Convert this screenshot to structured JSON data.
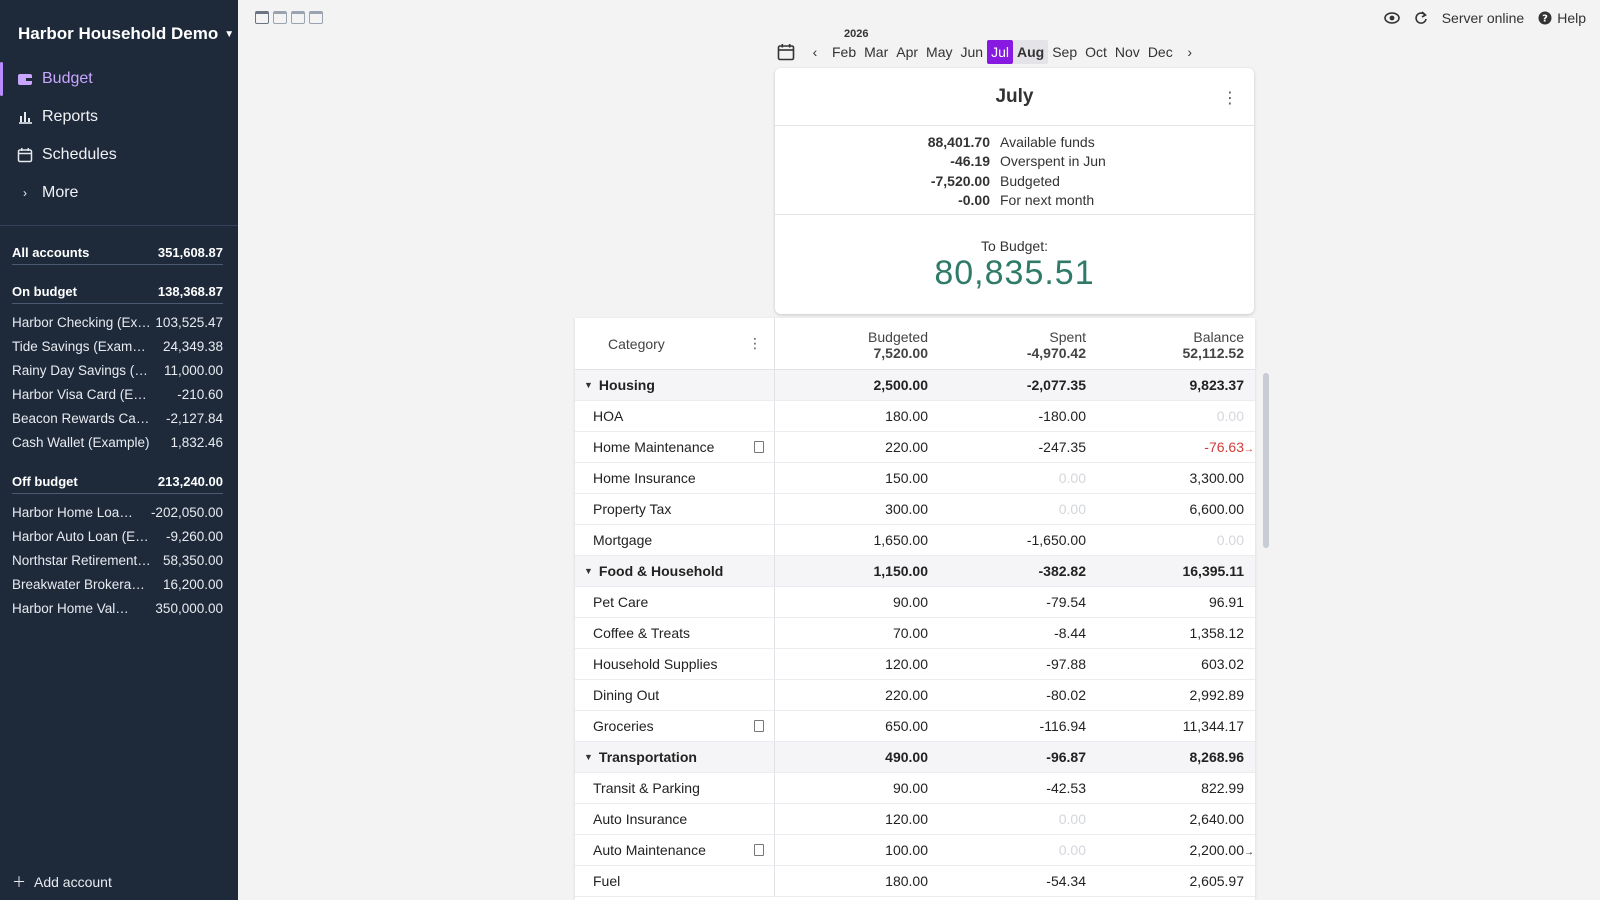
{
  "sidebar": {
    "budget_name": "Harbor Household Demo",
    "nav": [
      {
        "label": "Budget",
        "icon": "wallet-icon"
      },
      {
        "label": "Reports",
        "icon": "bar-chart-icon"
      },
      {
        "label": "Schedules",
        "icon": "calendar-icon"
      },
      {
        "label": "More",
        "icon": "chevron-right-icon"
      }
    ],
    "all_accounts": {
      "label": "All accounts",
      "value": "351,608.87"
    },
    "on_budget": {
      "label": "On budget",
      "value": "138,368.87",
      "accounts": [
        {
          "name": "Harbor Checking (Example)",
          "value": "103,525.47"
        },
        {
          "name": "Tide Savings (Example)",
          "value": "24,349.38"
        },
        {
          "name": "Rainy Day Savings (Example)",
          "value": "11,000.00"
        },
        {
          "name": "Harbor Visa Card (Example)",
          "value": "-210.60"
        },
        {
          "name": "Beacon Rewards Card (Example)",
          "value": "-2,127.84"
        },
        {
          "name": "Cash Wallet (Example)",
          "value": "1,832.46"
        }
      ]
    },
    "off_budget": {
      "label": "Off budget",
      "value": "213,240.00",
      "accounts": [
        {
          "name": "Harbor Home Loan (Example)",
          "value": "-202,050.00"
        },
        {
          "name": "Harbor Auto Loan (Example)",
          "value": "-9,260.00"
        },
        {
          "name": "Northstar Retirement (Example)",
          "value": "58,350.00"
        },
        {
          "name": "Breakwater Brokerage (Example)",
          "value": "16,200.00"
        },
        {
          "name": "Harbor Home Value (Example)",
          "value": "350,000.00"
        }
      ]
    },
    "add_account": "Add account"
  },
  "topbar": {
    "server_status": "Server online",
    "help": "Help"
  },
  "months": {
    "year": "2026",
    "list": [
      "Feb",
      "Mar",
      "Apr",
      "May",
      "Jun",
      "Jul",
      "Aug",
      "Sep",
      "Oct",
      "Nov",
      "Dec"
    ],
    "current": "Jul",
    "next": "Aug"
  },
  "summary": {
    "title": "July",
    "lines": [
      {
        "amount": "88,401.70",
        "label": "Available funds"
      },
      {
        "amount": "-46.19",
        "label": "Overspent in Jun"
      },
      {
        "amount": "-7,520.00",
        "label": "Budgeted"
      },
      {
        "amount": "-0.00",
        "label": "For next month"
      }
    ],
    "to_budget_label": "To Budget:",
    "to_budget_value": "80,835.51"
  },
  "table": {
    "headers": {
      "category": "Category",
      "budgeted": "Budgeted",
      "budgeted_total": "7,520.00",
      "spent": "Spent",
      "spent_total": "-4,970.42",
      "balance": "Balance",
      "balance_total": "52,112.52"
    },
    "rows": [
      {
        "type": "group",
        "name": "Housing",
        "budgeted": "2,500.00",
        "spent": "-2,077.35",
        "balance": "9,823.37"
      },
      {
        "type": "cat",
        "name": "HOA",
        "budgeted": "180.00",
        "spent": "-180.00",
        "balance": "0.00",
        "balance_zero": true
      },
      {
        "type": "cat",
        "name": "Home Maintenance",
        "note": true,
        "budgeted": "220.00",
        "spent": "-247.35",
        "balance": "-76.63",
        "balance_red": true,
        "carry": true
      },
      {
        "type": "cat",
        "name": "Home Insurance",
        "budgeted": "150.00",
        "spent": "0.00",
        "spent_zero": true,
        "balance": "3,300.00"
      },
      {
        "type": "cat",
        "name": "Property Tax",
        "budgeted": "300.00",
        "spent": "0.00",
        "spent_zero": true,
        "balance": "6,600.00"
      },
      {
        "type": "cat",
        "name": "Mortgage",
        "budgeted": "1,650.00",
        "spent": "-1,650.00",
        "balance": "0.00",
        "balance_zero": true
      },
      {
        "type": "group",
        "name": "Food & Household",
        "budgeted": "1,150.00",
        "spent": "-382.82",
        "balance": "16,395.11"
      },
      {
        "type": "cat",
        "name": "Pet Care",
        "budgeted": "90.00",
        "spent": "-79.54",
        "balance": "96.91"
      },
      {
        "type": "cat",
        "name": "Coffee & Treats",
        "budgeted": "70.00",
        "spent": "-8.44",
        "balance": "1,358.12"
      },
      {
        "type": "cat",
        "name": "Household Supplies",
        "budgeted": "120.00",
        "spent": "-97.88",
        "balance": "603.02"
      },
      {
        "type": "cat",
        "name": "Dining Out",
        "budgeted": "220.00",
        "spent": "-80.02",
        "balance": "2,992.89"
      },
      {
        "type": "cat",
        "name": "Groceries",
        "note": true,
        "budgeted": "650.00",
        "spent": "-116.94",
        "balance": "11,344.17"
      },
      {
        "type": "group",
        "name": "Transportation",
        "budgeted": "490.00",
        "spent": "-96.87",
        "balance": "8,268.96"
      },
      {
        "type": "cat",
        "name": "Transit & Parking",
        "budgeted": "90.00",
        "spent": "-42.53",
        "balance": "822.99"
      },
      {
        "type": "cat",
        "name": "Auto Insurance",
        "budgeted": "120.00",
        "spent": "0.00",
        "spent_zero": true,
        "balance": "2,640.00"
      },
      {
        "type": "cat",
        "name": "Auto Maintenance",
        "note": true,
        "budgeted": "100.00",
        "spent": "0.00",
        "spent_zero": true,
        "balance": "2,200.00",
        "carry": true
      },
      {
        "type": "cat",
        "name": "Fuel",
        "budgeted": "180.00",
        "spent": "-54.34",
        "balance": "2,605.97"
      }
    ]
  }
}
